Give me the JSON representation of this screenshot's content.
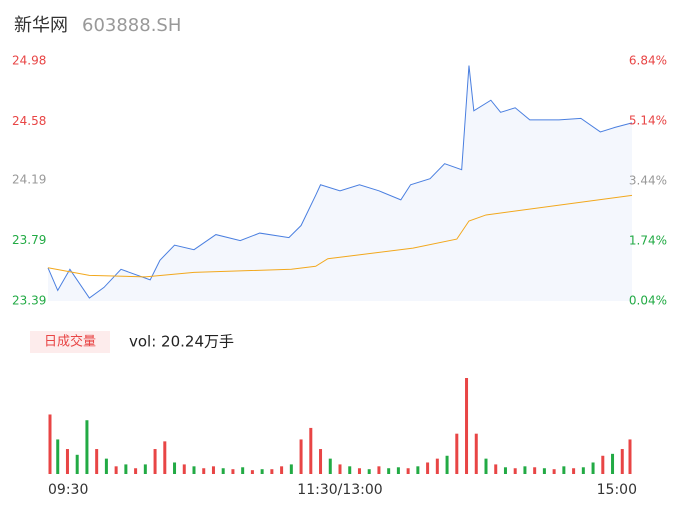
{
  "chart_data": [
    {
      "type": "line",
      "title": "新华网",
      "subtitle": "603888.SH",
      "xlim": [
        0,
        240
      ],
      "ylim": [
        23.39,
        24.98
      ],
      "yticks": [
        24.98,
        24.58,
        24.19,
        23.79,
        23.39
      ],
      "ytick_colors": [
        "#e84545",
        "#e84545",
        "#999999",
        "#22aa44",
        "#22aa44"
      ],
      "y2lim": [
        0.04,
        6.84
      ],
      "y2ticks": [
        {
          "value": 6.84,
          "label": "6.84%"
        },
        {
          "value": 5.14,
          "label": "5.14%"
        },
        {
          "value": 3.44,
          "label": "3.44%"
        },
        {
          "value": 1.74,
          "label": "1.74%"
        },
        {
          "value": 0.04,
          "label": "0.04%"
        }
      ],
      "series": [
        {
          "color": "#4a7fe0",
          "fill": "#f4f7fd",
          "x": [
            0,
            4,
            9,
            17,
            23,
            30,
            42,
            46,
            52,
            60,
            69,
            79,
            87,
            99,
            104,
            110,
            112,
            120,
            128,
            136,
            145,
            149,
            157,
            163,
            170,
            173,
            175,
            182,
            186,
            192,
            198,
            210,
            219,
            227,
            233,
            240
          ],
          "values": [
            23.61,
            23.46,
            23.6,
            23.41,
            23.48,
            23.6,
            23.53,
            23.66,
            23.76,
            23.73,
            23.83,
            23.79,
            23.84,
            23.81,
            23.89,
            24.09,
            24.16,
            24.12,
            24.16,
            24.12,
            24.06,
            24.16,
            24.2,
            24.3,
            24.26,
            24.95,
            24.65,
            24.72,
            24.64,
            24.67,
            24.59,
            24.59,
            24.6,
            24.51,
            24.54,
            24.57
          ]
        },
        {
          "color": "#f2a81d",
          "x": [
            0,
            17,
            40,
            60,
            100,
            110,
            115,
            150,
            168,
            173,
            180,
            240
          ],
          "values": [
            23.61,
            23.56,
            23.55,
            23.58,
            23.6,
            23.62,
            23.67,
            23.74,
            23.8,
            23.92,
            23.96,
            24.09
          ]
        }
      ]
    },
    {
      "type": "bar",
      "label": "日成交量",
      "annotation": "vol: 20.24万手",
      "xlim": [
        0,
        240
      ],
      "ylim": [
        0,
        100
      ],
      "xticks": [
        {
          "value": 0,
          "label": "09:30"
        },
        {
          "value": 120,
          "label": "11:30/13:00"
        },
        {
          "value": 240,
          "label": "15:00"
        }
      ],
      "x": [
        0,
        4,
        8,
        12,
        16,
        20,
        24,
        28,
        32,
        36,
        40,
        44,
        48,
        52,
        56,
        60,
        64,
        68,
        72,
        76,
        80,
        84,
        88,
        92,
        96,
        100,
        104,
        108,
        112,
        116,
        120,
        124,
        128,
        132,
        136,
        140,
        144,
        148,
        152,
        156,
        160,
        164,
        168,
        172,
        176,
        180,
        184,
        188,
        192,
        196,
        200,
        204,
        208,
        212,
        216,
        220,
        224,
        228,
        232,
        236,
        240
      ],
      "values": [
        62,
        36,
        26,
        20,
        56,
        26,
        16,
        8,
        10,
        6,
        10,
        26,
        34,
        12,
        10,
        8,
        6,
        8,
        6,
        5,
        7,
        4,
        5,
        5,
        8,
        10,
        36,
        48,
        26,
        16,
        10,
        8,
        6,
        5,
        8,
        6,
        7,
        6,
        8,
        12,
        16,
        19,
        42,
        100,
        42,
        16,
        10,
        7,
        6,
        8,
        7,
        6,
        5,
        8,
        6,
        7,
        12,
        19,
        21,
        26,
        36
      ],
      "colors": [
        "#e84545",
        "#22aa44",
        "#e84545",
        "#22aa44",
        "#22aa44",
        "#e84545",
        "#22aa44",
        "#e84545",
        "#22aa44",
        "#e84545",
        "#22aa44",
        "#e84545",
        "#e84545",
        "#22aa44",
        "#e84545",
        "#22aa44",
        "#e84545",
        "#e84545",
        "#22aa44",
        "#e84545",
        "#22aa44",
        "#e84545",
        "#22aa44",
        "#e84545",
        "#e84545",
        "#22aa44",
        "#e84545",
        "#e84545",
        "#e84545",
        "#22aa44",
        "#e84545",
        "#22aa44",
        "#e84545",
        "#22aa44",
        "#e84545",
        "#22aa44",
        "#22aa44",
        "#e84545",
        "#22aa44",
        "#e84545",
        "#e84545",
        "#22aa44",
        "#e84545",
        "#e84545",
        "#e84545",
        "#22aa44",
        "#e84545",
        "#22aa44",
        "#e84545",
        "#22aa44",
        "#e84545",
        "#22aa44",
        "#e84545",
        "#22aa44",
        "#e84545",
        "#22aa44",
        "#22aa44",
        "#e84545",
        "#22aa44",
        "#e84545",
        "#e84545"
      ]
    }
  ]
}
